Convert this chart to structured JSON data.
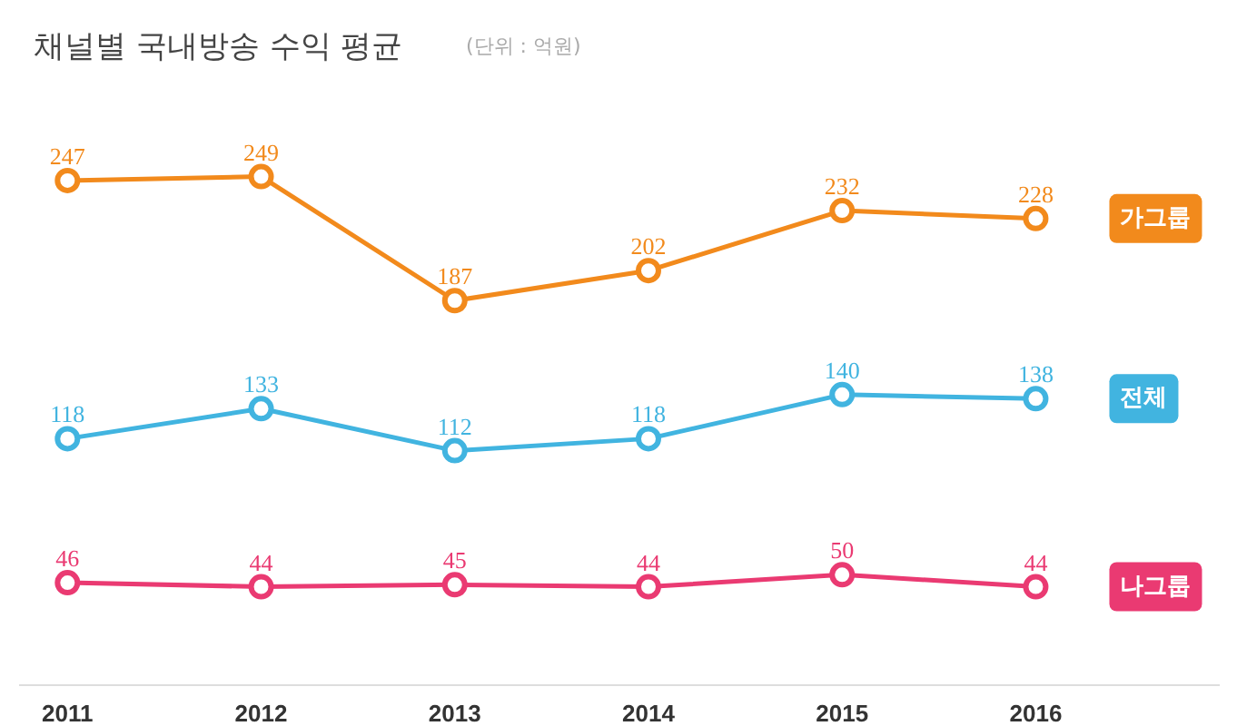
{
  "chart_data": {
    "type": "line",
    "title": "채널별 국내방송 수익 평균",
    "subtitle": "(단위 : 억원)",
    "categories": [
      "2011",
      "2012",
      "2013",
      "2014",
      "2015",
      "2016"
    ],
    "series": [
      {
        "name": "가그룹",
        "color": "#f28a1c",
        "values": [
          247,
          249,
          187,
          202,
          232,
          228
        ]
      },
      {
        "name": "전체",
        "color": "#41b4e0",
        "values": [
          118,
          133,
          112,
          118,
          140,
          138
        ]
      },
      {
        "name": "나그룹",
        "color": "#ea3a72",
        "values": [
          46,
          44,
          45,
          44,
          50,
          44
        ]
      }
    ],
    "data_labels": true,
    "legend": "right",
    "marker": "circle",
    "grid": false,
    "tick_labels": "x"
  }
}
